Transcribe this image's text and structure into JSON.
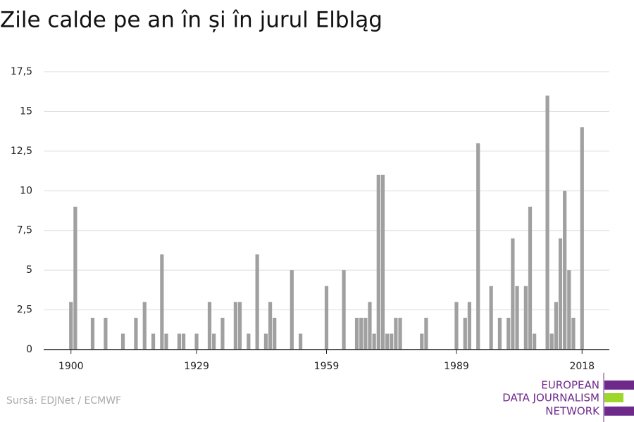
{
  "chart_data": {
    "type": "bar",
    "title": "Zile calde pe an în și în jurul Elbląg",
    "x": [
      1900,
      1901,
      1902,
      1903,
      1904,
      1905,
      1906,
      1907,
      1908,
      1909,
      1910,
      1911,
      1912,
      1913,
      1914,
      1915,
      1916,
      1917,
      1918,
      1919,
      1920,
      1921,
      1922,
      1923,
      1924,
      1925,
      1926,
      1927,
      1928,
      1929,
      1930,
      1931,
      1932,
      1933,
      1934,
      1935,
      1936,
      1937,
      1938,
      1939,
      1940,
      1941,
      1942,
      1943,
      1944,
      1945,
      1946,
      1947,
      1948,
      1949,
      1950,
      1951,
      1952,
      1953,
      1954,
      1955,
      1956,
      1957,
      1958,
      1959,
      1960,
      1961,
      1962,
      1963,
      1964,
      1965,
      1966,
      1967,
      1968,
      1969,
      1970,
      1971,
      1972,
      1973,
      1974,
      1975,
      1976,
      1977,
      1978,
      1979,
      1980,
      1981,
      1982,
      1983,
      1984,
      1985,
      1986,
      1987,
      1988,
      1989,
      1990,
      1991,
      1992,
      1993,
      1994,
      1995,
      1996,
      1997,
      1998,
      1999,
      2000,
      2001,
      2002,
      2003,
      2004,
      2005,
      2006,
      2007,
      2008,
      2009,
      2010,
      2011,
      2012,
      2013,
      2014,
      2015,
      2016,
      2017,
      2018
    ],
    "values": [
      3,
      9,
      0,
      0,
      0,
      2,
      0,
      0,
      2,
      0,
      0,
      0,
      1,
      0,
      0,
      2,
      0,
      3,
      0,
      1,
      0,
      6,
      1,
      0,
      0,
      1,
      1,
      0,
      0,
      1,
      0,
      0,
      3,
      1,
      0,
      2,
      0,
      0,
      3,
      3,
      0,
      1,
      0,
      6,
      0,
      1,
      3,
      2,
      0,
      0,
      0,
      5,
      0,
      1,
      0,
      0,
      0,
      0,
      0,
      4,
      0,
      0,
      0,
      5,
      0,
      0,
      2,
      2,
      2,
      3,
      1,
      11,
      11,
      1,
      1,
      2,
      2,
      0,
      0,
      0,
      0,
      1,
      2,
      0,
      0,
      0,
      0,
      0,
      0,
      3,
      0,
      2,
      3,
      0,
      13,
      0,
      0,
      4,
      0,
      2,
      0,
      2,
      7,
      4,
      0,
      4,
      9,
      1,
      0,
      0,
      16,
      1,
      3,
      7,
      10,
      5,
      2,
      0,
      14
    ],
    "color": "#a0a0a0",
    "xlim": [
      1893.7,
      2024.3
    ],
    "xticks": [
      1900,
      1929,
      1959,
      1989,
      2018
    ],
    "ylim": [
      0,
      17.5
    ],
    "yticks": [
      0,
      {
        "value": 2.5,
        "label": "2,5"
      },
      5,
      {
        "value": 7.5,
        "label": "7,5"
      },
      10,
      {
        "value": 12.5,
        "label": "12,5"
      },
      15,
      {
        "value": 17.5,
        "label": "17,5"
      }
    ],
    "grid": true
  },
  "footer": {
    "source": "Sursă: EDJNet / ECMWF",
    "logo": [
      "EUROPEAN",
      "DATA JOURNALISM",
      "NETWORK"
    ]
  }
}
